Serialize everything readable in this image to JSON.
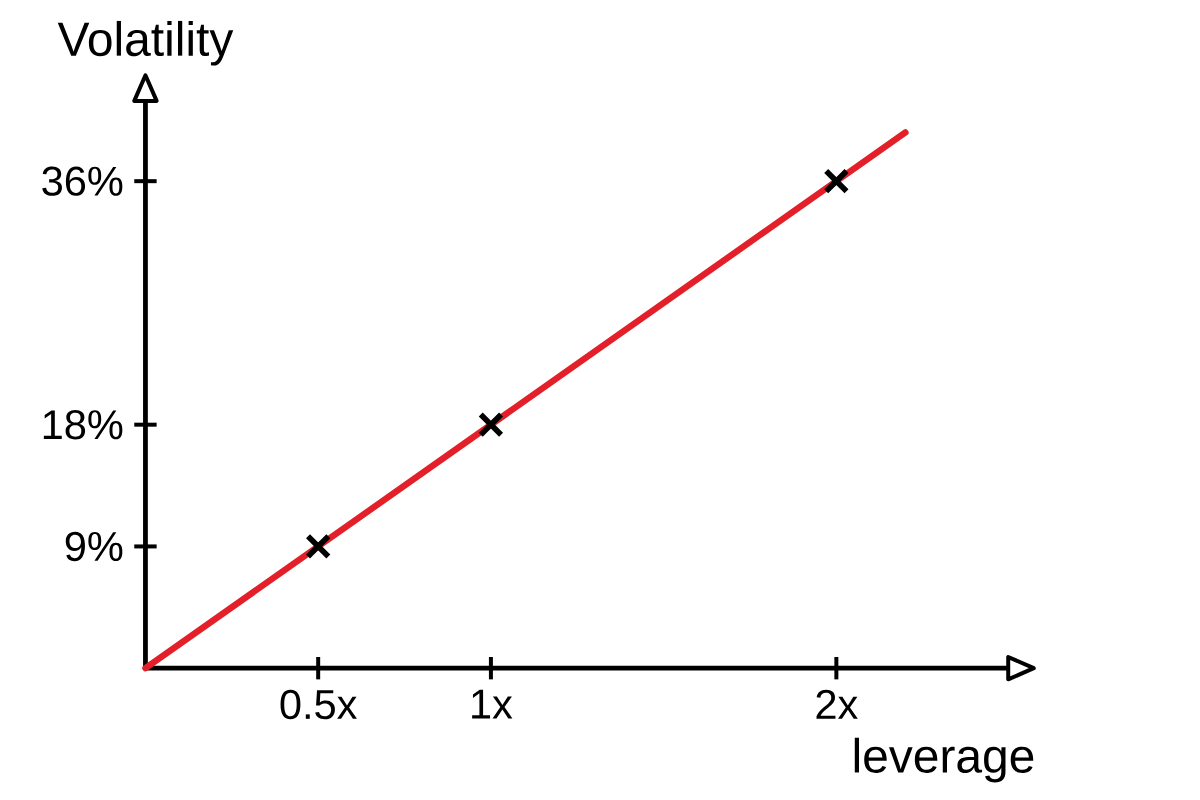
{
  "chart_data": {
    "type": "scatter",
    "xlabel": "leverage",
    "ylabel": "Volatility",
    "xlim": [
      0,
      2.5
    ],
    "ylim": [
      0,
      42
    ],
    "xticks": [
      {
        "value": 0.5,
        "label": "0.5x"
      },
      {
        "value": 1,
        "label": "1x"
      },
      {
        "value": 2,
        "label": "2x"
      }
    ],
    "yticks": [
      {
        "value": 9,
        "label": "9%"
      },
      {
        "value": 18,
        "label": "18%"
      },
      {
        "value": 36,
        "label": "36%"
      }
    ],
    "series": [
      {
        "color": "#000000",
        "marker": "cross",
        "x": [
          0.5,
          1,
          2
        ],
        "values": [
          9,
          18,
          36
        ]
      },
      {
        "type": "line",
        "color": "#e3202a",
        "x": [
          0,
          2.2
        ],
        "values": [
          0,
          39.6
        ]
      }
    ]
  }
}
